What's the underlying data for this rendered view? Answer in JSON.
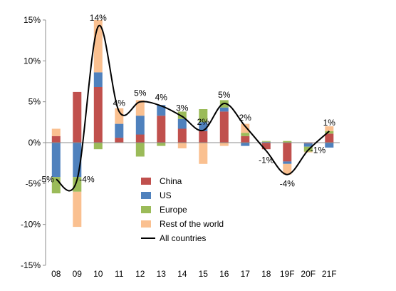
{
  "chart_data": {
    "type": "bar",
    "stacked": true,
    "categories": [
      "08",
      "09",
      "10",
      "11",
      "12",
      "13",
      "14",
      "15",
      "16",
      "17",
      "18",
      "19F",
      "20F",
      "21F"
    ],
    "series": [
      {
        "name": "China",
        "color": "#C0504D",
        "values": [
          0.8,
          6.2,
          6.8,
          0.6,
          1.0,
          3.3,
          1.7,
          1.4,
          3.8,
          0.8,
          -0.8,
          -2.3,
          -0.1,
          1.1
        ]
      },
      {
        "name": "US",
        "color": "#4F81BD",
        "values": [
          -4.2,
          -4.2,
          1.8,
          1.7,
          2.3,
          1.3,
          1.2,
          1.1,
          0.5,
          -0.4,
          0.1,
          -0.3,
          -0.4,
          -0.6
        ]
      },
      {
        "name": "Europe",
        "color": "#9BBB59",
        "values": [
          -2.0,
          -1.8,
          -0.8,
          0.0,
          -1.7,
          -0.4,
          0.9,
          1.6,
          0.9,
          0.4,
          0.1,
          0.2,
          -0.6,
          0.3
        ]
      },
      {
        "name": "Rest of the world",
        "color": "#FAC090",
        "values": [
          0.9,
          -4.3,
          6.4,
          1.9,
          1.9,
          0.0,
          -0.7,
          -2.6,
          -0.4,
          1.1,
          0.0,
          -1.3,
          -0.1,
          0.6
        ]
      }
    ],
    "line": {
      "name": "All countries",
      "color": "#000000",
      "values": [
        -4.5,
        -4.5,
        14.2,
        3.8,
        5.0,
        4.5,
        3.2,
        1.5,
        4.8,
        2.0,
        -1.0,
        -3.9,
        -0.9,
        1.4
      ]
    },
    "data_labels": [
      "-5%",
      "-4%",
      "14%",
      "4%",
      "5%",
      "4%",
      "3%",
      "2%",
      "5%",
      "2%",
      "-1%",
      "-4%",
      "-1%",
      "1%"
    ],
    "label_positions": [
      "left",
      "right",
      "above",
      "above",
      "above",
      "above",
      "above",
      "above",
      "above",
      "above",
      "below",
      "below",
      "right",
      "above"
    ],
    "y_ticks": [
      -15,
      -10,
      -5,
      0,
      5,
      10,
      15
    ],
    "y_tick_labels": [
      "-15%",
      "-10%",
      "-5%",
      "0%",
      "5%",
      "10%",
      "15%"
    ],
    "ylim": [
      -15,
      15
    ],
    "grid": false,
    "legend_placement": "bottom-center"
  }
}
